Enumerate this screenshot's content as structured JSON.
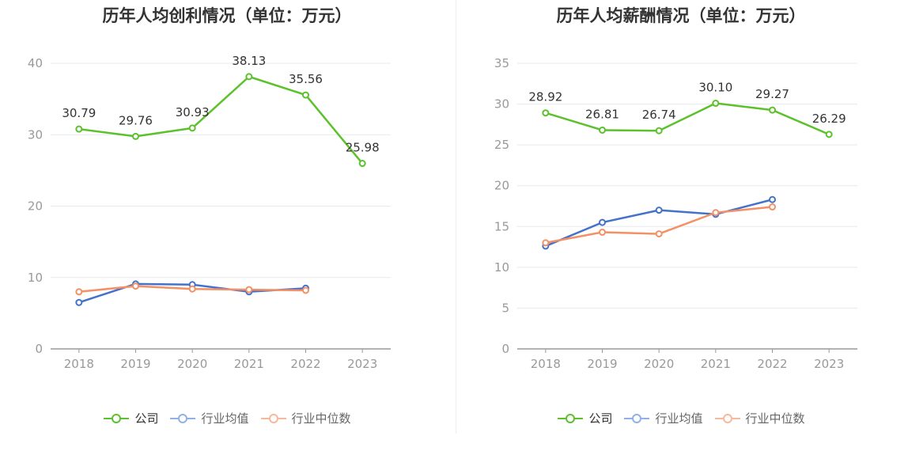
{
  "colors": {
    "company": "#5cc12c",
    "avg": "#4472ca",
    "median": "#f39065",
    "avg_legend": "#8fb0ea",
    "median_legend": "#f7b89b"
  },
  "legend": {
    "company": "公司",
    "avg": "行业均值",
    "median": "行业中位数"
  },
  "chart_data": [
    {
      "type": "line",
      "title": "历年人均创利情况（单位：万元）",
      "categories": [
        "2018",
        "2019",
        "2020",
        "2021",
        "2022",
        "2023"
      ],
      "ylim": [
        0,
        40
      ],
      "yticks": [
        0,
        10,
        20,
        30,
        40
      ],
      "grid": true,
      "legend_position": "bottom",
      "series": [
        {
          "name": "公司",
          "values": [
            30.79,
            29.76,
            30.93,
            38.13,
            35.56,
            25.98
          ],
          "labels": [
            "30.79",
            "29.76",
            "30.93",
            "38.13",
            "35.56",
            "25.98"
          ]
        },
        {
          "name": "行业均值",
          "values": [
            6.5,
            9.1,
            9.0,
            8.0,
            8.5,
            null
          ]
        },
        {
          "name": "行业中位数",
          "values": [
            8.0,
            8.8,
            8.4,
            8.3,
            8.2,
            null
          ]
        }
      ]
    },
    {
      "type": "line",
      "title": "历年人均薪酬情况（单位：万元）",
      "categories": [
        "2018",
        "2019",
        "2020",
        "2021",
        "2022",
        "2023"
      ],
      "ylim": [
        0,
        35
      ],
      "yticks": [
        0,
        5,
        10,
        15,
        20,
        25,
        30,
        35
      ],
      "grid": true,
      "legend_position": "bottom",
      "series": [
        {
          "name": "公司",
          "values": [
            28.92,
            26.81,
            26.74,
            30.1,
            29.27,
            26.29
          ],
          "labels": [
            "28.92",
            "26.81",
            "26.74",
            "30.10",
            "29.27",
            "26.29"
          ]
        },
        {
          "name": "行业均值",
          "values": [
            12.6,
            15.5,
            17.0,
            16.5,
            18.3,
            null
          ]
        },
        {
          "name": "行业中位数",
          "values": [
            13.0,
            14.3,
            14.1,
            16.7,
            17.4,
            null
          ]
        }
      ]
    }
  ]
}
